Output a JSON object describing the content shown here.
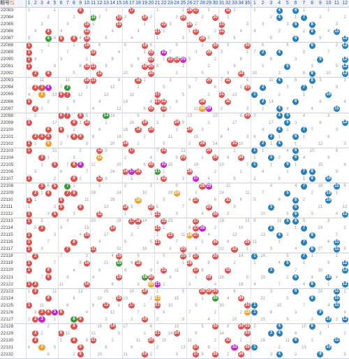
{
  "header": {
    "period_label": "期号",
    "sort_icon": "sort-arrow-icon",
    "front_numbers": [
      "1",
      "2",
      "3",
      "4",
      "5",
      "6",
      "7",
      "8",
      "9",
      "10",
      "11",
      "12",
      "13",
      "14",
      "15",
      "16",
      "17",
      "18",
      "19",
      "20",
      "21",
      "22",
      "23",
      "24",
      "25",
      "26",
      "27",
      "28",
      "29",
      "30",
      "31",
      "32",
      "33",
      "34",
      "35"
    ],
    "back_numbers": [
      "1",
      "2",
      "3",
      "4",
      "5",
      "6",
      "7",
      "8",
      "9",
      "10",
      "11",
      "12"
    ]
  },
  "colors": {
    "red_ball": "#d9534f",
    "orange_ball": "#f0a030",
    "green_ball": "#3c9a3c",
    "magenta_ball": "#c026c9",
    "blue_ball": "#2a7fb8",
    "miss_text": "#999999",
    "header_text": "#1a56c4"
  },
  "periods": [
    "22083",
    "22084",
    "22085",
    "22086",
    "22087",
    "22088",
    "22089",
    "22090",
    "22091",
    "22092",
    "22093",
    "22094",
    "22095",
    "22096",
    "22097",
    "22098",
    "22099",
    "22100",
    "22101",
    "22102",
    "22103",
    "22104",
    "22105",
    "22106",
    "22107",
    "22108",
    "22109",
    "22110",
    "22111",
    "22112",
    "22113",
    "22114",
    "22115",
    "22116",
    "22117",
    "22118",
    "22119",
    "22120",
    "22121",
    "22122",
    "22123",
    "22124",
    "22125",
    "22126",
    "22127",
    "22128",
    "22129",
    "22130",
    "22131",
    "22132"
  ],
  "draws": [
    {
      "front": [
        9,
        17,
        26,
        27,
        32
      ],
      "back": [
        4,
        6
      ]
    },
    {
      "front": [
        11,
        15,
        19,
        25,
        30
      ],
      "back": [
        4,
        7
      ]
    },
    {
      "front": [
        10,
        15,
        22,
        26,
        31
      ],
      "back": [
        6,
        8
      ]
    },
    {
      "front": [
        4,
        10,
        21,
        27,
        31
      ],
      "back": [
        8,
        11
      ]
    },
    {
      "front": [
        4,
        6,
        8,
        10,
        28
      ],
      "back": [
        6,
        12
      ]
    },
    {
      "front": [
        1,
        10,
        19,
        30,
        35
      ],
      "back": [
        8,
        12
      ]
    },
    {
      "front": [
        1,
        11,
        20,
        22,
        29
      ],
      "back": [
        2,
        4
      ]
    },
    {
      "front": [
        1,
        20,
        23,
        24,
        25
      ],
      "back": [
        9,
        12
      ]
    },
    {
      "front": [
        1,
        10,
        11,
        19,
        20
      ],
      "back": [
        5,
        12
      ]
    },
    {
      "front": [
        2,
        4,
        12,
        20,
        34
      ],
      "back": [
        8,
        12
      ]
    },
    {
      "front": [
        10,
        11,
        18,
        29,
        32
      ],
      "back": [
        4,
        8
      ]
    },
    {
      "front": [
        2,
        3,
        4,
        7,
        35
      ],
      "back": [
        2,
        7
      ]
    },
    {
      "front": [
        3,
        6,
        7,
        21,
        31
      ],
      "back": [
        1,
        10
      ]
    },
    {
      "front": [
        1,
        21,
        22,
        28,
        32
      ],
      "back": [
        2,
        6
      ]
    },
    {
      "front": [
        2,
        20,
        22,
        28,
        29
      ],
      "back": [
        4,
        11
      ]
    },
    {
      "front": [
        6,
        7,
        9,
        13,
        35
      ],
      "back": [
        4,
        5
      ]
    },
    {
      "front": [
        1,
        8,
        10,
        19,
        24
      ],
      "back": [
        5,
        12
      ]
    },
    {
      "front": [
        4,
        6,
        18,
        20,
        26
      ],
      "back": [
        4,
        7
      ]
    },
    {
      "front": [
        2,
        3,
        4,
        8,
        9
      ],
      "back": [
        3,
        6
      ]
    },
    {
      "front": [
        1,
        4,
        16,
        28,
        33
      ],
      "back": [
        2,
        4
      ]
    },
    {
      "front": [
        1,
        12,
        17,
        22,
        29
      ],
      "back": [
        1,
        6
      ]
    },
    {
      "front": [
        3,
        12,
        25,
        30,
        34
      ],
      "back": [
        3,
        6
      ]
    },
    {
      "front": [
        5,
        8,
        9,
        20,
        22
      ],
      "back": [
        1,
        5
      ]
    },
    {
      "front": [
        16,
        17,
        18,
        21,
        26
      ],
      "back": [
        7,
        8
      ]
    },
    {
      "front": [
        1,
        8,
        12,
        22,
        27
      ],
      "back": [
        8,
        10
      ]
    },
    {
      "front": [
        3,
        5,
        7,
        29,
        28
      ],
      "back": [
        7,
        11
      ]
    },
    {
      "front": [
        2,
        4,
        7,
        8,
        24
      ],
      "back": [
        5,
        10
      ]
    },
    {
      "front": [
        1,
        6,
        18,
        27,
        32
      ],
      "back": [
        6,
        10
      ]
    },
    {
      "front": [
        6,
        9,
        16,
        20,
        29
      ],
      "back": [
        3,
        6
      ]
    },
    {
      "front": [
        1,
        5,
        12,
        21,
        30
      ],
      "back": [
        6,
        12
      ]
    },
    {
      "front": [
        1,
        17,
        18,
        22,
        27
      ],
      "back": [
        5,
        6
      ]
    },
    {
      "front": [
        3,
        14,
        21,
        27,
        28
      ],
      "back": [
        3,
        7
      ]
    },
    {
      "front": [
        1,
        10,
        23,
        26,
        27
      ],
      "back": [
        4,
        8
      ]
    },
    {
      "front": [
        1,
        8,
        21,
        30,
        35
      ],
      "back": [
        7,
        11
      ]
    },
    {
      "front": [
        1,
        7,
        11,
        25,
        33
      ],
      "back": [
        8,
        11
      ]
    },
    {
      "front": [
        2,
        15,
        25,
        27,
        30
      ],
      "back": [
        1,
        7
      ]
    },
    {
      "front": [
        1,
        10,
        15,
        18,
        26
      ],
      "back": [
        5,
        12
      ]
    },
    {
      "front": [
        1,
        4,
        22,
        27,
        32
      ],
      "back": [
        3,
        12
      ]
    },
    {
      "front": [
        4,
        15,
        19,
        20,
        29
      ],
      "back": [
        6,
        10
      ]
    },
    {
      "front": [
        1,
        2,
        10,
        20,
        21
      ],
      "back": [
        8,
        12
      ]
    },
    {
      "front": [
        2,
        19,
        28,
        29,
        30
      ],
      "back": [
        6,
        11
      ]
    },
    {
      "front": [
        4,
        15,
        21,
        30,
        34
      ],
      "back": [
        8,
        11
      ]
    },
    {
      "front": [
        1,
        13,
        17,
        21,
        35
      ],
      "back": [
        1,
        11
      ]
    },
    {
      "front": [
        3,
        4,
        5,
        6,
        35
      ],
      "back": [
        1,
        9
      ]
    },
    {
      "front": [
        2,
        3,
        8,
        9,
        19
      ],
      "back": [
        10,
        12
      ]
    },
    {
      "front": [
        8,
        14,
        30,
        34,
        35
      ],
      "back": [
        4,
        8
      ]
    },
    {
      "front": [
        2,
        6,
        21,
        24,
        35
      ],
      "back": [
        3,
        4
      ]
    },
    {
      "front": [
        2,
        8,
        11,
        20,
        32
      ],
      "back": [
        6,
        11
      ]
    },
    {
      "front": [
        3,
        9,
        27,
        33,
        35
      ],
      "back": [
        1,
        10
      ]
    },
    {
      "front": [
        9,
        19,
        27,
        30,
        34
      ],
      "back": [
        4,
        9
      ]
    }
  ],
  "special_colors": {
    "22084": {
      "11": "green"
    },
    "22087": {
      "4": "green"
    },
    "22089": {
      "22": "magenta"
    },
    "22090": {
      "25": "magenta"
    },
    "22094": {
      "4": "magenta",
      "7": "green"
    },
    "22095": {
      "3": "orange"
    },
    "22097": {
      "28": "orange",
      "29": "magenta"
    },
    "22098": {
      "13": "green"
    },
    "22102": {
      "4": "orange"
    },
    "22104": {
      "12": "orange"
    },
    "22105": {
      "9": "magenta",
      "22": "magenta"
    },
    "22106": {
      "17": "magenta",
      "21": "green"
    },
    "22107": {
      "27": "magenta"
    },
    "22108": {
      "29": "magenta",
      "7": "green"
    },
    "22109": {
      "24": "orange"
    },
    "22110": {
      "18": "orange"
    },
    "22114": {
      "28": "magenta"
    },
    "22115": {
      "26": "orange"
    },
    "22119": {
      "15": "green"
    },
    "22121": {
      "19": "green"
    },
    "22122": {
      "20": "orange",
      "21": "magenta"
    },
    "22124": {
      "21": "orange",
      "30": "green"
    },
    "22126": {
      "5": "magenta",
      "35": "orange"
    },
    "22127": {
      "3": "magenta",
      "8": "green"
    },
    "22129": {
      "34": "orange"
    },
    "22131": {
      "3": "orange",
      "33": "magenta"
    }
  }
}
